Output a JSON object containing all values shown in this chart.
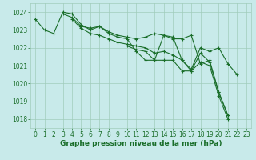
{
  "bg_color": "#c8eaea",
  "grid_color": "#a0ccbb",
  "line_color": "#1a6e2a",
  "marker_color": "#1a6e2a",
  "xlabel": "Graphe pression niveau de la mer (hPa)",
  "xlabel_fontsize": 6.5,
  "xlabel_color": "#1a6e2a",
  "ylim": [
    1017.5,
    1024.5
  ],
  "yticks": [
    1018,
    1019,
    1020,
    1021,
    1022,
    1023,
    1024
  ],
  "xticks": [
    0,
    1,
    2,
    3,
    4,
    5,
    6,
    7,
    8,
    9,
    10,
    11,
    12,
    13,
    14,
    15,
    16,
    17,
    18,
    19,
    20,
    21,
    22,
    23
  ],
  "series": [
    [
      1023.6,
      1023.0,
      1022.8,
      1024.0,
      1023.9,
      1023.3,
      1023.0,
      1023.2,
      1022.8,
      1022.6,
      1022.5,
      1021.8,
      1021.3,
      1021.3,
      1022.7,
      1022.5,
      1022.5,
      1022.7,
      1021.1,
      1021.3,
      1019.5,
      1018.2,
      null,
      null
    ],
    [
      null,
      null,
      null,
      1023.9,
      1023.7,
      1023.2,
      1023.1,
      1023.2,
      1022.9,
      1022.7,
      1022.6,
      1022.5,
      1022.6,
      1022.8,
      1022.7,
      1022.6,
      1021.3,
      1020.8,
      1022.0,
      1021.8,
      1022.0,
      1021.1,
      1020.5,
      null
    ],
    [
      null,
      null,
      null,
      null,
      1023.6,
      1023.1,
      1022.8,
      1022.7,
      1022.5,
      1022.3,
      1022.2,
      1022.1,
      1022.0,
      1021.7,
      1021.8,
      1021.6,
      1021.3,
      1020.7,
      1021.7,
      1021.2,
      1019.5,
      1018.2,
      null,
      null
    ],
    [
      null,
      null,
      null,
      null,
      null,
      null,
      null,
      null,
      null,
      null,
      1022.1,
      1021.9,
      1021.8,
      1021.3,
      1021.3,
      1021.3,
      1020.7,
      1020.7,
      1021.2,
      1021.0,
      1019.3,
      1018.0,
      null,
      null
    ]
  ],
  "tick_fontsize": 5.5,
  "tick_color": "#1a6e2a"
}
